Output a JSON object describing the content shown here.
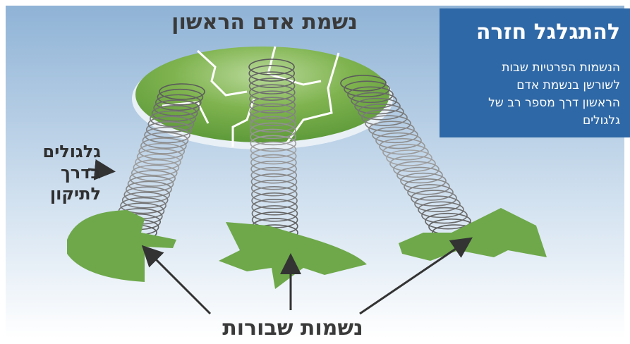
{
  "title": "נשמת אדם הראשון",
  "info_box": {
    "heading": "להתגלגל חזרה",
    "lines": [
      "הנשמות הפרטיות שבות",
      "לשורשן בנשמת אדם",
      "הראשון דרך מספר רב של",
      "גלגולים"
    ]
  },
  "side_label": {
    "lines": [
      "גלגולים",
      "בדרך",
      "לתיקון"
    ]
  },
  "bottom_label": "נשמות שבורות"
}
